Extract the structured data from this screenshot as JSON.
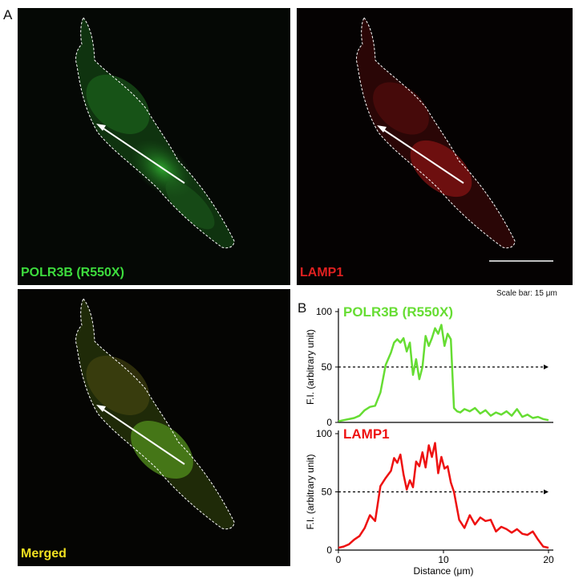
{
  "panels": {
    "a_label": "A",
    "b_label": "B",
    "green": {
      "label": "POLR3B (R550X)",
      "label_color": "#3ddc3d"
    },
    "red": {
      "label": "LAMP1",
      "label_color": "#e02020"
    },
    "merged": {
      "label": "Merged",
      "label_color": "#f0e020"
    },
    "scale_bar_text": "Scale bar: 15 μm"
  },
  "chart_data": [
    {
      "type": "line",
      "title": "POLR3B (R550X)",
      "ylabel": "F.I. (arbitrary unit)",
      "xlabel": "",
      "ylim": [
        0,
        100
      ],
      "xlim": [
        0,
        20
      ],
      "yticks": [
        "0",
        "50",
        "100"
      ],
      "color": "#66dd33",
      "reference_line": 50,
      "series": [
        {
          "x": [
            0,
            0.5,
            1,
            1.5,
            2,
            2.5,
            3,
            3.5,
            4,
            4.5,
            5,
            5.3,
            5.6,
            5.9,
            6.2,
            6.5,
            6.8,
            7.1,
            7.4,
            7.7,
            8,
            8.3,
            8.6,
            8.9,
            9.2,
            9.5,
            9.8,
            10.1,
            10.4,
            10.7,
            11,
            11.3,
            11.6,
            12,
            12.5,
            13,
            13.5,
            14,
            14.5,
            15,
            15.5,
            16,
            16.5,
            17,
            17.5,
            18,
            18.5,
            19,
            19.5,
            20
          ],
          "y": [
            1,
            2,
            3,
            4,
            6,
            11,
            14,
            15,
            27,
            52,
            63,
            72,
            75,
            72,
            76,
            64,
            72,
            43,
            57,
            39,
            50,
            78,
            69,
            76,
            85,
            80,
            88,
            69,
            80,
            75,
            13,
            10,
            9,
            12,
            10,
            13,
            8,
            11,
            6,
            9,
            7,
            10,
            6,
            12,
            5,
            7,
            4,
            5,
            3,
            2
          ]
        }
      ]
    },
    {
      "type": "line",
      "title": "LAMP1",
      "ylabel": "F.I. (arbitrary unit)",
      "xlabel": "Distance (μm)",
      "ylim": [
        0,
        100
      ],
      "xlim": [
        0,
        20
      ],
      "yticks": [
        "0",
        "50",
        "100"
      ],
      "xticks": [
        "0",
        "10",
        "20"
      ],
      "color": "#ee1111",
      "reference_line": 50,
      "series": [
        {
          "x": [
            0,
            0.5,
            1,
            1.5,
            2,
            2.5,
            3,
            3.5,
            4,
            4.5,
            5,
            5.3,
            5.6,
            5.9,
            6.2,
            6.5,
            6.8,
            7.1,
            7.4,
            7.7,
            8,
            8.3,
            8.6,
            8.9,
            9.2,
            9.5,
            9.8,
            10.1,
            10.4,
            10.7,
            11,
            11.5,
            12,
            12.5,
            13,
            13.5,
            14,
            14.5,
            15,
            15.5,
            16,
            16.5,
            17,
            17.5,
            18,
            18.5,
            19,
            19.5,
            20
          ],
          "y": [
            2,
            3,
            5,
            9,
            12,
            19,
            30,
            25,
            55,
            62,
            68,
            79,
            75,
            82,
            65,
            52,
            60,
            54,
            76,
            72,
            84,
            71,
            90,
            80,
            92,
            66,
            80,
            70,
            72,
            58,
            50,
            26,
            19,
            30,
            22,
            28,
            25,
            26,
            16,
            20,
            18,
            15,
            18,
            14,
            13,
            16,
            9,
            3,
            2
          ]
        }
      ]
    }
  ]
}
